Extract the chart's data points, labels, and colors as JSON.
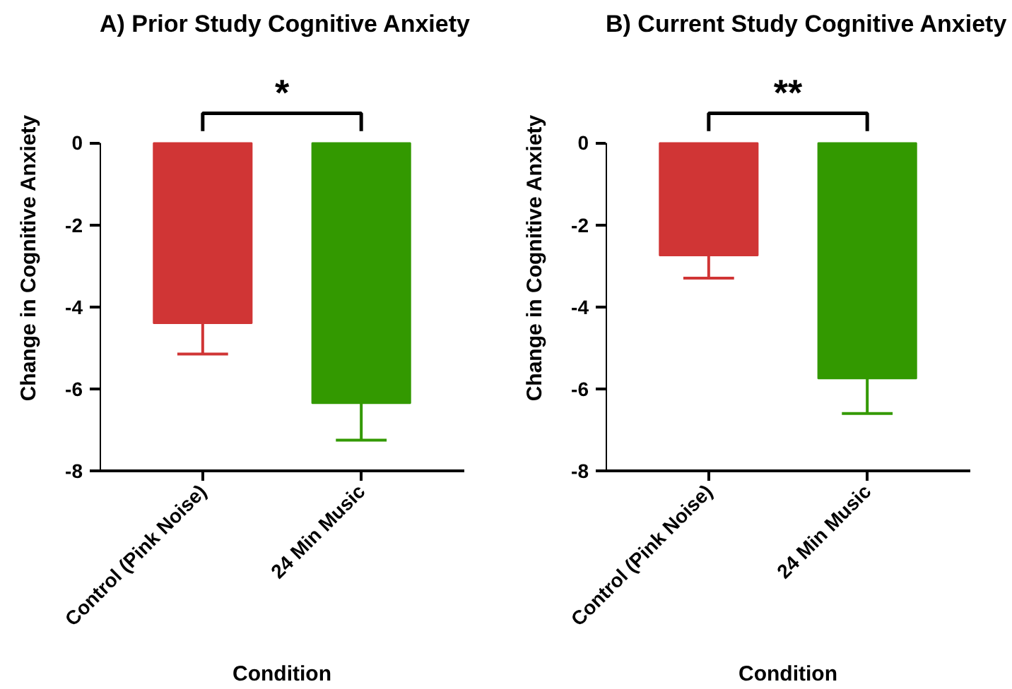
{
  "chart_data": [
    {
      "type": "bar",
      "title": "A) Prior Study Cognitive Anxiety",
      "xlabel": "Condition",
      "ylabel": "Change in Cognitive Anxiety",
      "categories": [
        "Control (Pink Noise)",
        "24 Min Music"
      ],
      "values": [
        -4.4,
        -6.35
      ],
      "colors": [
        "#d03535",
        "#339900"
      ],
      "errors": [
        [
          -5.15,
          -4.4
        ],
        [
          -7.25,
          -6.35
        ]
      ],
      "ylim": [
        -8,
        0
      ],
      "yticks": [
        -8,
        -6,
        -4,
        -2,
        0
      ],
      "grid": false,
      "annotations": [
        "*"
      ]
    },
    {
      "type": "bar",
      "title": "B) Current Study Cognitive Anxiety",
      "xlabel": "Condition",
      "ylabel": "Change in Cognitive Anxiety",
      "categories": [
        "Control (Pink Noise)",
        "24 Min Music"
      ],
      "values": [
        -2.75,
        -5.75
      ],
      "colors": [
        "#d03535",
        "#339900"
      ],
      "errors": [
        [
          -3.3,
          -2.75
        ],
        [
          -6.6,
          -5.75
        ]
      ],
      "ylim": [
        -8,
        0
      ],
      "yticks": [
        -8,
        -6,
        -4,
        -2,
        0
      ],
      "grid": false,
      "annotations": [
        "**"
      ]
    }
  ]
}
